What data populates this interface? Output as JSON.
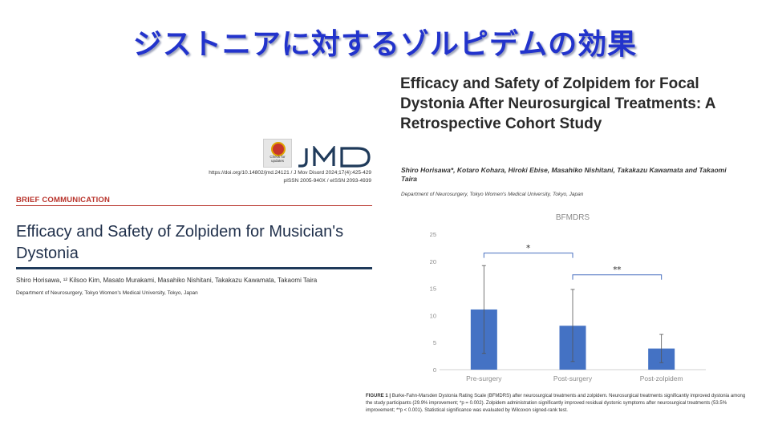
{
  "slide": {
    "title": "ジストニアに対するゾルピデムの効果"
  },
  "left_paper": {
    "check_badge_text": "Check for updates",
    "journal_logo": "JMD",
    "doi": "https://doi.org/10.14802/jmd.24121  /  J Mov Disord 2024;17(4):425-429",
    "issn": "pISSN 2005-940X / eISSN 2093-4939",
    "section": "BRIEF COMMUNICATION",
    "title": "Efficacy and Safety of Zolpidem for Musician's Dystonia",
    "authors": "Shiro Horisawa, ¹² Kilsoo Kim, Masato Murakami, Masahiko Nishitani, Takakazu Kawamata, Takaomi Taira",
    "affiliation": "Department of Neurosurgery, Tokyo Women's Medical University, Tokyo, Japan"
  },
  "right_paper": {
    "title": "Efficacy and Safety of Zolpidem for Focal Dystonia After Neurosurgical Treatments: A Retrospective Cohort Study",
    "authors": "Shiro Horisawa*, Kotaro Kohara, Hiroki Ebise, Masahiko Nishitani, Takakazu Kawamata and Takaomi Taira",
    "affiliation": "Department of Neurosurgery, Tokyo Women's Medical University, Tokyo, Japan",
    "caption_label": "FIGURE 1 |",
    "caption_text": "Burke-Fahn-Marsden Dystonia Rating Scale (BFMDRS) after neurosurgical treatments and zolpidem. Neurosurgical treatments significantly improved dystonia among the study participants (29.9% improvement; *p = 0.002). Zolpidem administration significantly improved residual dystonic symptoms after neurosurgical treatments (53.5% improvement; **p < 0.001). Statistical significance was evaluated by Wilcoxon signed-rank test."
  },
  "chart_data": {
    "type": "bar",
    "title": "BFMDRS",
    "categories": [
      "Pre-surgery",
      "Post-surgery",
      "Post-zolpidem"
    ],
    "values": [
      11.1,
      8.1,
      3.9
    ],
    "error_low": [
      3.0,
      1.5,
      1.3
    ],
    "error_high": [
      19.2,
      14.8,
      6.5
    ],
    "ylim": [
      0,
      25
    ],
    "yticks": [
      0,
      5,
      10,
      15,
      20,
      25
    ],
    "grid": false,
    "bar_color": "#4472c4",
    "significance": [
      {
        "from": 0,
        "to": 1,
        "label": "*",
        "y": 21.5
      },
      {
        "from": 1,
        "to": 2,
        "label": "**",
        "y": 17.5
      }
    ]
  }
}
